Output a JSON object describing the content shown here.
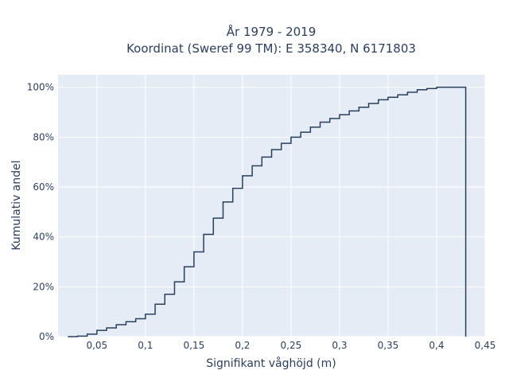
{
  "chart_data": {
    "type": "line",
    "subtype": "step-cdf",
    "title_line1": "År 1979 - 2019",
    "title_line2": "Koordinat (Sweref 99 TM): E 358340, N 6171803",
    "xlabel": "Signifikant våghöjd (m)",
    "ylabel": "Kumulativ andel",
    "xlim": [
      0.01,
      0.45
    ],
    "ylim": [
      0,
      1.05
    ],
    "x_ticks": [
      {
        "value": 0.05,
        "label": "0,05"
      },
      {
        "value": 0.1,
        "label": "0,1"
      },
      {
        "value": 0.15,
        "label": "0,15"
      },
      {
        "value": 0.2,
        "label": "0,2"
      },
      {
        "value": 0.25,
        "label": "0,25"
      },
      {
        "value": 0.3,
        "label": "0,3"
      },
      {
        "value": 0.35,
        "label": "0,35"
      },
      {
        "value": 0.4,
        "label": "0,4"
      },
      {
        "value": 0.45,
        "label": "0,45"
      }
    ],
    "y_ticks": [
      {
        "value": 0,
        "label": "0%"
      },
      {
        "value": 0.2,
        "label": "20%"
      },
      {
        "value": 0.4,
        "label": "40%"
      },
      {
        "value": 0.6,
        "label": "60%"
      },
      {
        "value": 0.8,
        "label": "80%"
      },
      {
        "value": 1.0,
        "label": "100%"
      }
    ],
    "series": [
      {
        "color": "#2a3f5f",
        "x": [
          0.02,
          0.03,
          0.04,
          0.05,
          0.06,
          0.07,
          0.08,
          0.09,
          0.1,
          0.11,
          0.12,
          0.13,
          0.14,
          0.15,
          0.16,
          0.17,
          0.18,
          0.19,
          0.2,
          0.21,
          0.22,
          0.23,
          0.24,
          0.25,
          0.26,
          0.27,
          0.28,
          0.29,
          0.3,
          0.31,
          0.32,
          0.33,
          0.34,
          0.35,
          0.36,
          0.37,
          0.38,
          0.39,
          0.4,
          0.41,
          0.42,
          0.43
        ],
        "y": [
          0.0,
          0.002,
          0.01,
          0.025,
          0.035,
          0.048,
          0.06,
          0.072,
          0.09,
          0.13,
          0.17,
          0.22,
          0.28,
          0.34,
          0.41,
          0.475,
          0.54,
          0.595,
          0.645,
          0.685,
          0.72,
          0.75,
          0.775,
          0.8,
          0.82,
          0.84,
          0.86,
          0.875,
          0.89,
          0.905,
          0.92,
          0.935,
          0.95,
          0.96,
          0.97,
          0.98,
          0.99,
          0.995,
          1.0,
          1.0,
          1.0,
          0.0
        ]
      }
    ],
    "grid": true,
    "legend": false
  },
  "colors": {
    "plot_bg": "#e5ecf6",
    "grid": "#ffffff",
    "line": "#2a3f5f",
    "text": "#2a3f5f"
  }
}
